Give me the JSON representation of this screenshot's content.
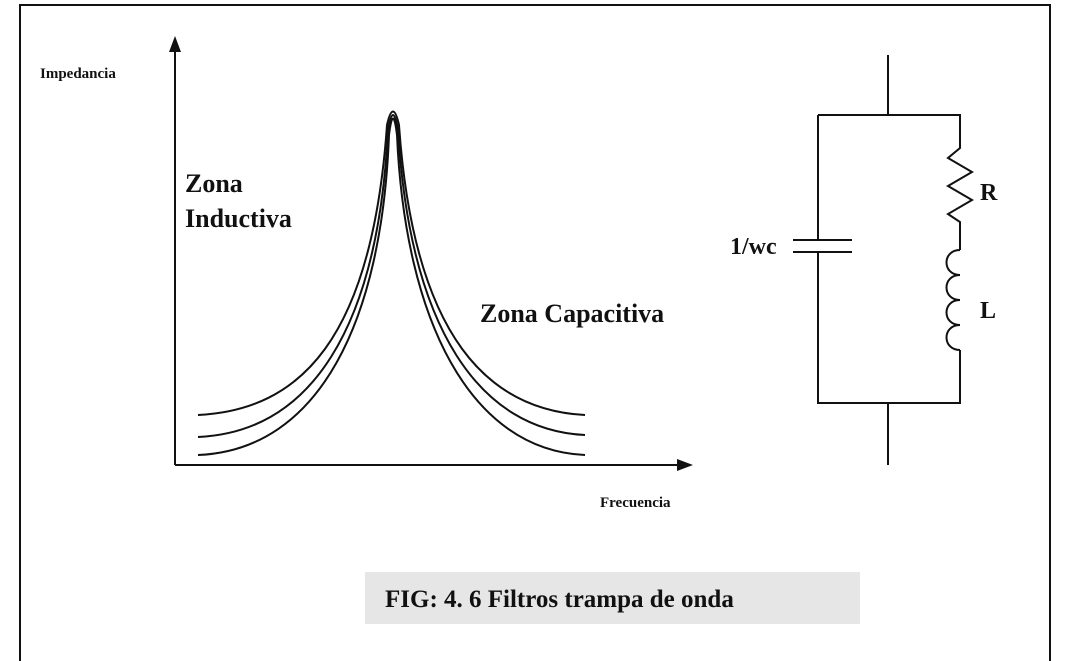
{
  "graph": {
    "y_axis_label": "Impedancia",
    "x_axis_label": "Frecuencia",
    "zones": [
      {
        "lines": [
          "Zona",
          "Inductiva"
        ]
      },
      {
        "lines": [
          "Zona Capacitiva"
        ]
      }
    ]
  },
  "circuit": {
    "capacitor_label": "1/wc",
    "resistor_label": "R",
    "inductor_label": "L"
  },
  "caption": "FIG: 4. 6 Filtros trampa de onda"
}
